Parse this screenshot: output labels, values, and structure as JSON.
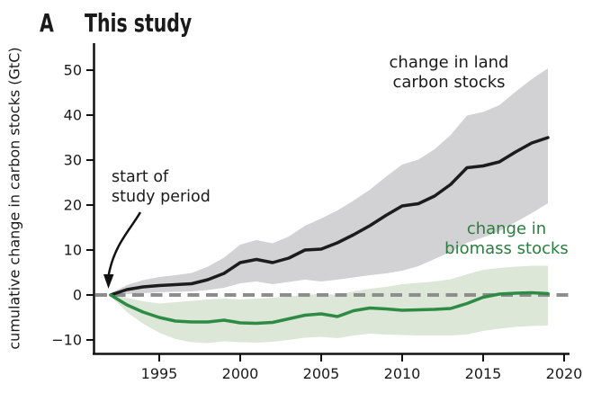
{
  "panel": {
    "label": "A",
    "title": "This study"
  },
  "colors": {
    "land_line": "#1c1c1c",
    "land_band": "#d2d2d4",
    "biomass_line": "#2e8b44",
    "biomass_band": "#dde7d8",
    "zero_line": "#8d8d8d",
    "axis": "#111111",
    "biomass_text": "#2b7d3f"
  },
  "chart_data": {
    "type": "line",
    "panel_label": "A",
    "title": "This study",
    "xlabel": "",
    "ylabel": "cumulative change in carbon stocks (GtC)",
    "x": [
      1992,
      1993,
      1994,
      1995,
      1996,
      1997,
      1998,
      1999,
      2000,
      2001,
      2002,
      2003,
      2004,
      2005,
      2006,
      2007,
      2008,
      2009,
      2010,
      2011,
      2012,
      2013,
      2014,
      2015,
      2016,
      2017,
      2018,
      2019
    ],
    "series": [
      {
        "name": "change in land carbon stocks",
        "color": "#1c1c1c",
        "band_color": "#d2d2d4",
        "values": [
          0,
          1.2,
          1.8,
          2.1,
          2.3,
          2.5,
          3.4,
          4.8,
          7.2,
          7.9,
          7.2,
          8.2,
          10.0,
          10.2,
          11.6,
          13.4,
          15.4,
          17.7,
          19.8,
          20.3,
          22.0,
          24.6,
          28.3,
          28.7,
          29.6,
          31.8,
          33.8,
          35.0
        ],
        "band_upper": [
          0.4,
          2.2,
          3.3,
          4.0,
          4.4,
          4.9,
          6.3,
          8.3,
          11.2,
          12.2,
          11.5,
          13.0,
          15.4,
          17.0,
          18.8,
          21.0,
          23.4,
          26.3,
          29.0,
          30.1,
          32.4,
          35.6,
          39.9,
          40.7,
          42.2,
          45.2,
          48.0,
          50.4
        ],
        "band_lower": [
          -0.4,
          0.2,
          0.4,
          0.6,
          0.7,
          0.8,
          1.1,
          1.6,
          2.6,
          3.0,
          2.4,
          2.9,
          3.4,
          3.0,
          3.4,
          3.9,
          4.4,
          4.8,
          5.4,
          6.4,
          8.0,
          9.6,
          11.6,
          12.8,
          14.2,
          16.2,
          18.2,
          20.4
        ]
      },
      {
        "name": "change in biomass stocks",
        "color": "#2e8b44",
        "band_color": "#dde7d8",
        "values": [
          0,
          -2.2,
          -3.8,
          -5.0,
          -5.8,
          -6.0,
          -6.0,
          -5.6,
          -6.2,
          -6.3,
          -6.1,
          -5.3,
          -4.5,
          -4.2,
          -4.8,
          -3.5,
          -2.9,
          -3.1,
          -3.4,
          -3.3,
          -3.2,
          -3.0,
          -1.9,
          -0.5,
          0.2,
          0.4,
          0.5,
          0.3
        ],
        "band_upper": [
          0.3,
          -0.6,
          -1.4,
          -1.9,
          -1.6,
          -1.3,
          -1.0,
          -0.8,
          -1.0,
          -0.8,
          -0.6,
          -0.3,
          0.0,
          0.3,
          0.0,
          0.8,
          1.4,
          1.8,
          2.4,
          2.7,
          3.0,
          3.5,
          4.6,
          5.6,
          6.0,
          6.3,
          6.5,
          6.5
        ],
        "band_lower": [
          -0.3,
          -3.8,
          -6.4,
          -8.4,
          -9.8,
          -10.5,
          -10.7,
          -10.3,
          -10.5,
          -10.6,
          -10.4,
          -10.0,
          -9.5,
          -9.3,
          -9.6,
          -9.0,
          -8.6,
          -8.8,
          -8.9,
          -9.0,
          -9.0,
          -9.0,
          -8.8,
          -8.0,
          -7.5,
          -7.1,
          -6.9,
          -6.8
        ]
      }
    ],
    "x_ticks": [
      {
        "v": 1995,
        "label": "1995"
      },
      {
        "v": 2000,
        "label": "2000"
      },
      {
        "v": 2005,
        "label": "2005"
      },
      {
        "v": 2010,
        "label": "2010"
      },
      {
        "v": 2015,
        "label": "2015"
      },
      {
        "v": 2020,
        "label": "2020"
      }
    ],
    "y_ticks": [
      {
        "v": 50,
        "label": "50"
      },
      {
        "v": 40,
        "label": "40"
      },
      {
        "v": 30,
        "label": "30"
      },
      {
        "v": 20,
        "label": "20"
      },
      {
        "v": 10,
        "label": "10"
      },
      {
        "v": 0,
        "label": "0"
      },
      {
        "v": -10,
        "label": "−10"
      }
    ],
    "xlim": [
      1991,
      2020.3
    ],
    "ylim": [
      -13,
      56
    ],
    "grid": false,
    "zero_line": {
      "style": "dashed",
      "color": "#8d8d8d"
    },
    "legend_position": "inline-annotations",
    "annotations": [
      {
        "id": "land",
        "lines": [
          "change in land",
          "carbon stocks"
        ],
        "color": "#1a1a1a"
      },
      {
        "id": "biomass",
        "lines": [
          "change in",
          "biomass stocks"
        ],
        "color": "#2b7d3f"
      },
      {
        "id": "start",
        "lines": [
          "start of",
          "study period"
        ],
        "color": "#1a1a1a",
        "arrow_to": [
          1992,
          0
        ]
      }
    ]
  }
}
